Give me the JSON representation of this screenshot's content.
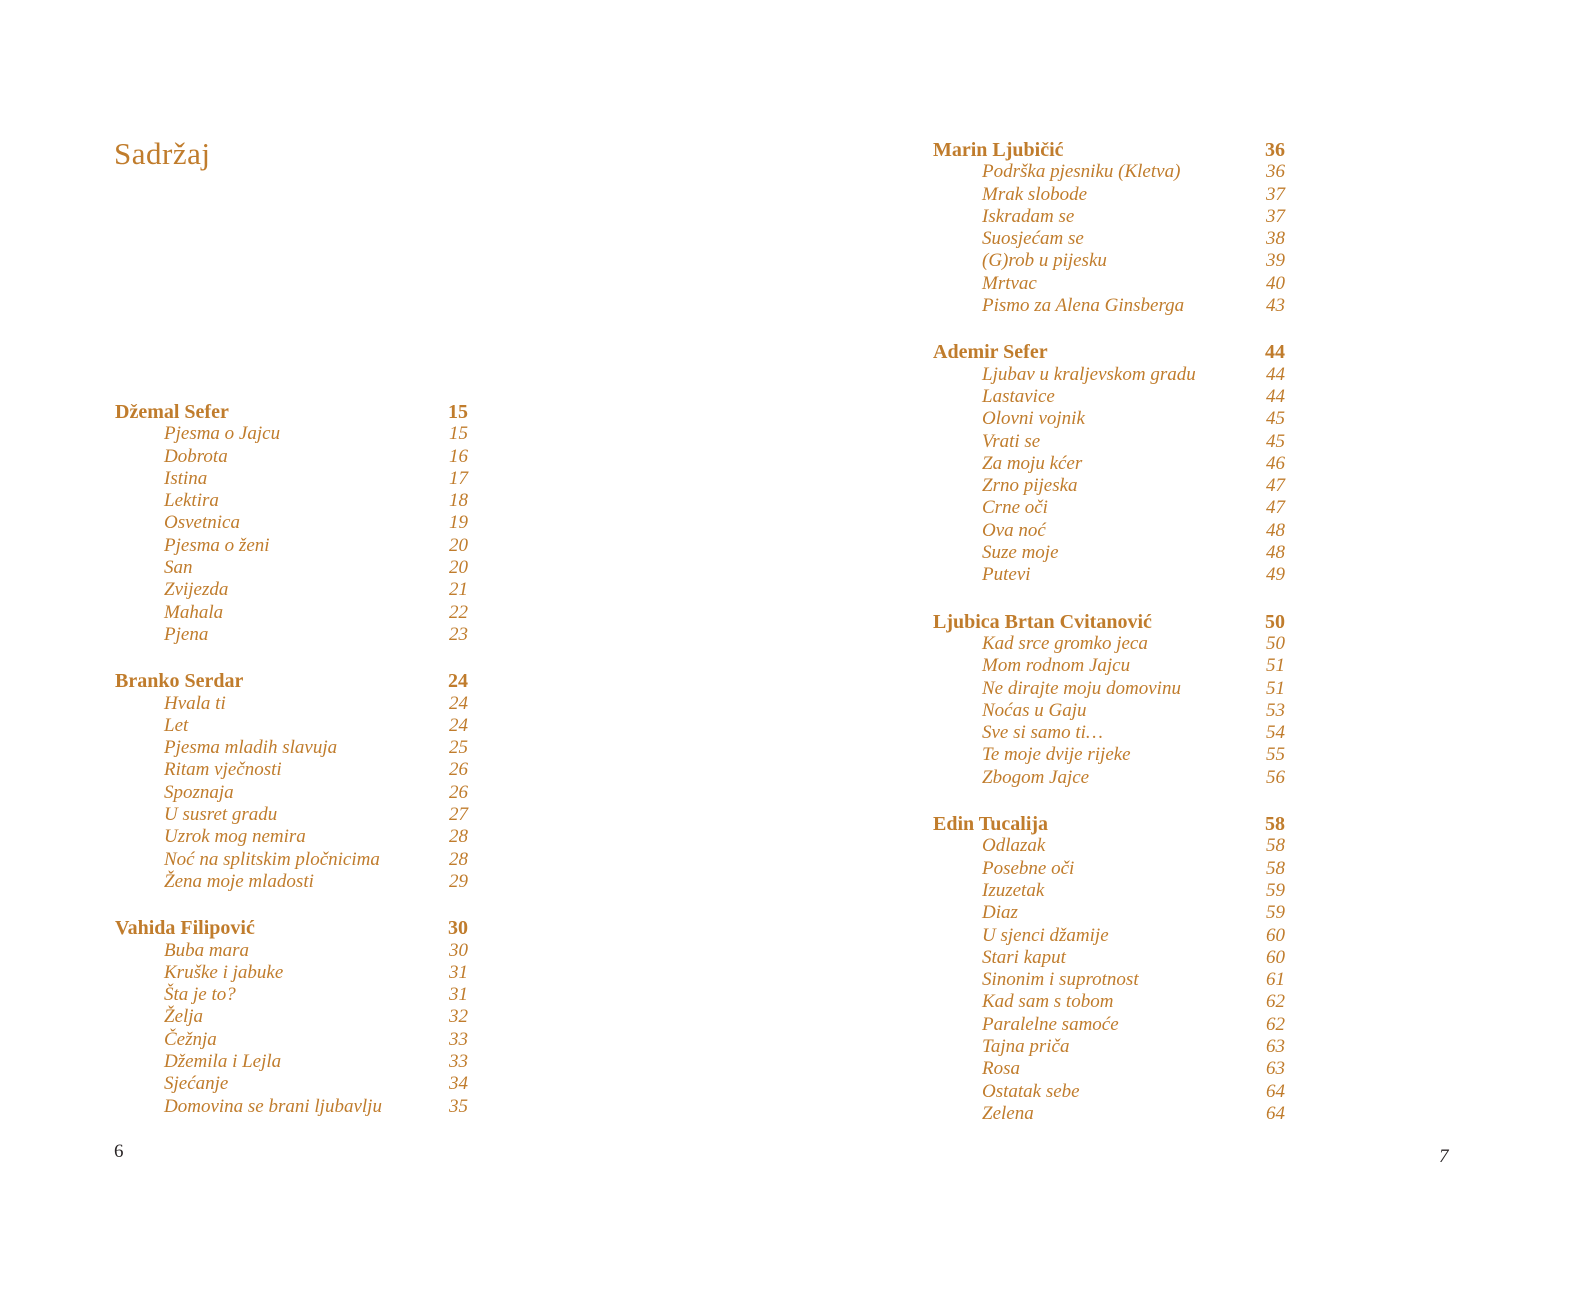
{
  "accent_color": "#c07c2c",
  "folio_color": "#2b2627",
  "title": "Sadržaj",
  "pages": [
    {
      "folio": "6",
      "sections": [
        {
          "title": "Džemal Sefer",
          "page": "15",
          "items": [
            {
              "title": "Pjesma o Jajcu",
              "page": "15"
            },
            {
              "title": "Dobrota",
              "page": "16"
            },
            {
              "title": "Istina",
              "page": "17"
            },
            {
              "title": "Lektira",
              "page": "18"
            },
            {
              "title": "Osvetnica",
              "page": "19"
            },
            {
              "title": "Pjesma o ženi",
              "page": "20"
            },
            {
              "title": "San",
              "page": "20"
            },
            {
              "title": "Zvijezda",
              "page": "21"
            },
            {
              "title": "Mahala",
              "page": "22"
            },
            {
              "title": "Pjena",
              "page": "23"
            }
          ]
        },
        {
          "title": "Branko Serdar",
          "page": "24",
          "items": [
            {
              "title": "Hvala ti",
              "page": "24"
            },
            {
              "title": "Let",
              "page": "24"
            },
            {
              "title": "Pjesma mladih slavuja",
              "page": "25"
            },
            {
              "title": "Ritam vječnosti",
              "page": "26"
            },
            {
              "title": "Spoznaja",
              "page": "26"
            },
            {
              "title": "U susret gradu",
              "page": "27"
            },
            {
              "title": "Uzrok mog nemira",
              "page": "28"
            },
            {
              "title": "Noć na splitskim pločnicima",
              "page": "28"
            },
            {
              "title": "Žena moje mladosti",
              "page": "29"
            }
          ]
        },
        {
          "title": "Vahida Filipović",
          "page": "30",
          "items": [
            {
              "title": "Buba mara",
              "page": "30"
            },
            {
              "title": "Kruške i jabuke",
              "page": "31"
            },
            {
              "title": "Šta je to?",
              "page": "31"
            },
            {
              "title": "Želja",
              "page": "32"
            },
            {
              "title": "Čežnja",
              "page": "33"
            },
            {
              "title": "Džemila i Lejla",
              "page": "33"
            },
            {
              "title": "Sjećanje",
              "page": "34"
            },
            {
              "title": "Domovina se brani ljubavlju",
              "page": "35"
            }
          ]
        }
      ]
    },
    {
      "folio": "7",
      "sections": [
        {
          "title": "Marin Ljubičić",
          "page": "36",
          "items": [
            {
              "title": "Podrška pjesniku (Kletva)",
              "page": "36"
            },
            {
              "title": "Mrak slobode",
              "page": "37"
            },
            {
              "title": "Iskradam se",
              "page": "37"
            },
            {
              "title": "Suosjećam se",
              "page": "38"
            },
            {
              "title": "(G)rob u pijesku",
              "page": "39"
            },
            {
              "title": "Mrtvac",
              "page": "40"
            },
            {
              "title": "Pismo za Alena Ginsberga",
              "page": "43"
            }
          ]
        },
        {
          "title": "Ademir Sefer",
          "page": "44",
          "items": [
            {
              "title": "Ljubav u kraljevskom gradu",
              "page": "44"
            },
            {
              "title": "Lastavice",
              "page": "44"
            },
            {
              "title": "Olovni vojnik",
              "page": "45"
            },
            {
              "title": "Vrati se",
              "page": "45"
            },
            {
              "title": "Za moju kćer",
              "page": "46"
            },
            {
              "title": "Zrno pijeska",
              "page": "47"
            },
            {
              "title": "Crne oči",
              "page": "47"
            },
            {
              "title": "Ova noć",
              "page": "48"
            },
            {
              "title": "Suze moje",
              "page": "48"
            },
            {
              "title": "Putevi",
              "page": "49"
            }
          ]
        },
        {
          "title": "Ljubica Brtan Cvitanović",
          "page": "50",
          "items": [
            {
              "title": "Kad srce gromko jeca",
              "page": "50"
            },
            {
              "title": "Mom rodnom Jajcu",
              "page": "51"
            },
            {
              "title": "Ne dirajte moju domovinu",
              "page": "51"
            },
            {
              "title": "Noćas u Gaju",
              "page": "53"
            },
            {
              "title": "Sve si samo ti…",
              "page": "54"
            },
            {
              "title": "Te moje dvije rijeke",
              "page": "55"
            },
            {
              "title": "Zbogom Jajce",
              "page": "56"
            }
          ]
        },
        {
          "title": "Edin Tucalija",
          "page": "58",
          "items": [
            {
              "title": "Odlazak",
              "page": "58"
            },
            {
              "title": "Posebne oči",
              "page": "58"
            },
            {
              "title": "Izuzetak",
              "page": "59"
            },
            {
              "title": "Diaz",
              "page": "59"
            },
            {
              "title": "U sjenci džamije",
              "page": "60"
            },
            {
              "title": "Stari kaput",
              "page": "60"
            },
            {
              "title": "Sinonim i suprotnost",
              "page": "61"
            },
            {
              "title": "Kad sam s tobom",
              "page": "62"
            },
            {
              "title": "Paralelne samoće",
              "page": "62"
            },
            {
              "title": "Tajna priča",
              "page": "63"
            },
            {
              "title": "Rosa",
              "page": "63"
            },
            {
              "title": "Ostatak sebe",
              "page": "64"
            },
            {
              "title": "Zelena",
              "page": "64"
            }
          ]
        }
      ]
    }
  ]
}
